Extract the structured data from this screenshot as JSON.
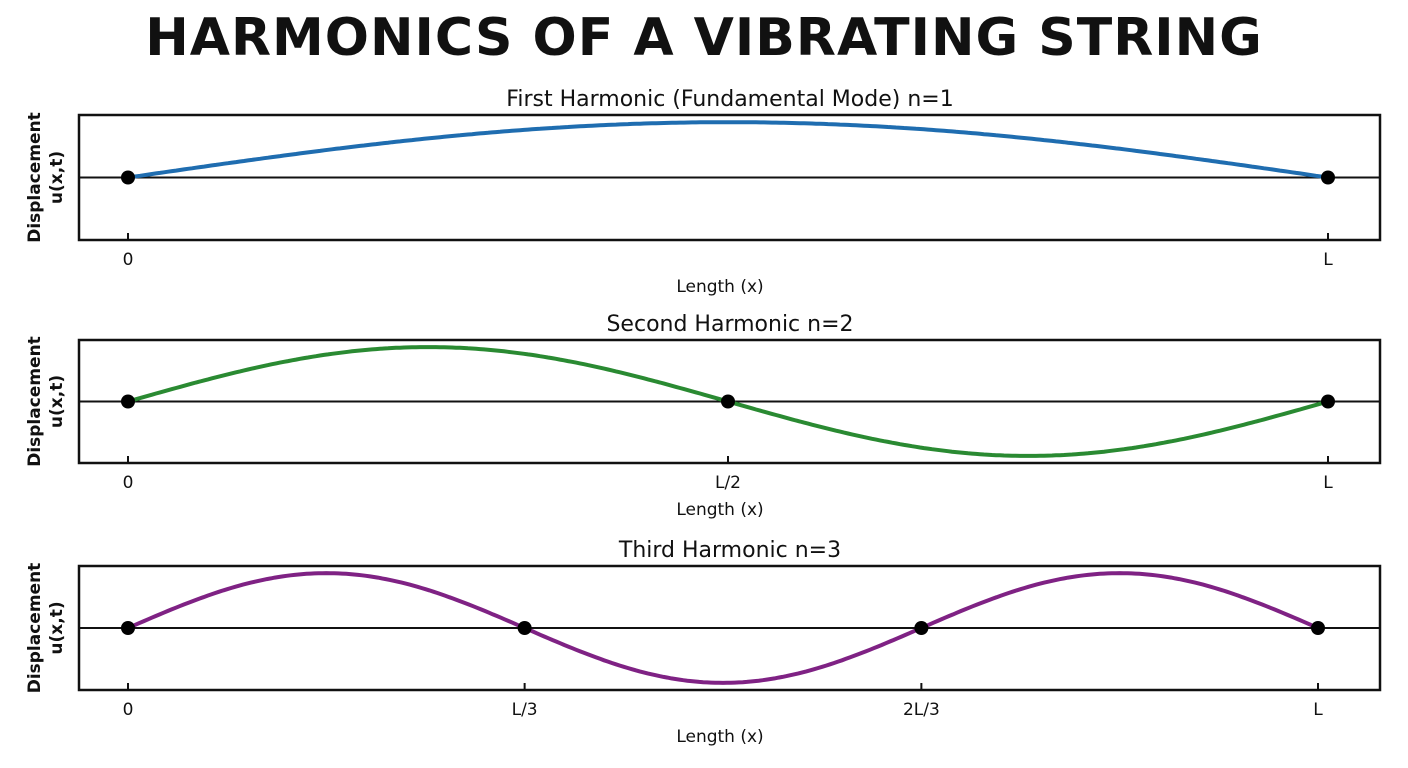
{
  "title": "HARMONICS OF A VIBRATING STRING",
  "chart_data": [
    {
      "type": "line",
      "title": "First Harmonic (Fundamental Mode) n=1",
      "n": 1,
      "xlabel": "Length (x)",
      "ylabel": [
        "Displacement",
        "u(x,t)"
      ],
      "xlim_fraction_of_L": [
        0,
        1
      ],
      "ylim": [
        -1.13,
        1.13
      ],
      "function": "sin(n*pi*x/L)",
      "amplitude": 1,
      "nodes": [
        0,
        1
      ],
      "xticks": [
        {
          "value": 0,
          "label": "0"
        },
        {
          "value": 1,
          "label": "L"
        }
      ],
      "color": "#1f6db0"
    },
    {
      "type": "line",
      "title": "Second Harmonic n=2",
      "n": 2,
      "xlabel": "Length (x)",
      "ylabel": [
        "Displacement",
        "u(x,t)"
      ],
      "xlim_fraction_of_L": [
        0,
        1
      ],
      "ylim": [
        -1.13,
        1.13
      ],
      "function": "sin(n*pi*x/L)",
      "amplitude": 1,
      "nodes": [
        0,
        0.5,
        1
      ],
      "xticks": [
        {
          "value": 0,
          "label": "0"
        },
        {
          "value": 0.5,
          "label": "L/2"
        },
        {
          "value": 1,
          "label": "L"
        }
      ],
      "color": "#2a8a32"
    },
    {
      "type": "line",
      "title": "Third Harmonic n=3",
      "n": 3,
      "xlabel": "Length (x)",
      "ylabel": [
        "Displacement",
        "u(x,t)"
      ],
      "xlim_fraction_of_L": [
        0,
        1
      ],
      "ylim": [
        -1.13,
        1.13
      ],
      "function": "sin(n*pi*x/L)",
      "amplitude": 1,
      "nodes": [
        0,
        0.3333,
        0.6667,
        1
      ],
      "xticks": [
        {
          "value": 0,
          "label": "0"
        },
        {
          "value": 0.3333,
          "label": "L/3"
        },
        {
          "value": 0.6667,
          "label": "2L/3"
        },
        {
          "value": 1,
          "label": "L"
        }
      ],
      "color": "#7f2284"
    }
  ]
}
